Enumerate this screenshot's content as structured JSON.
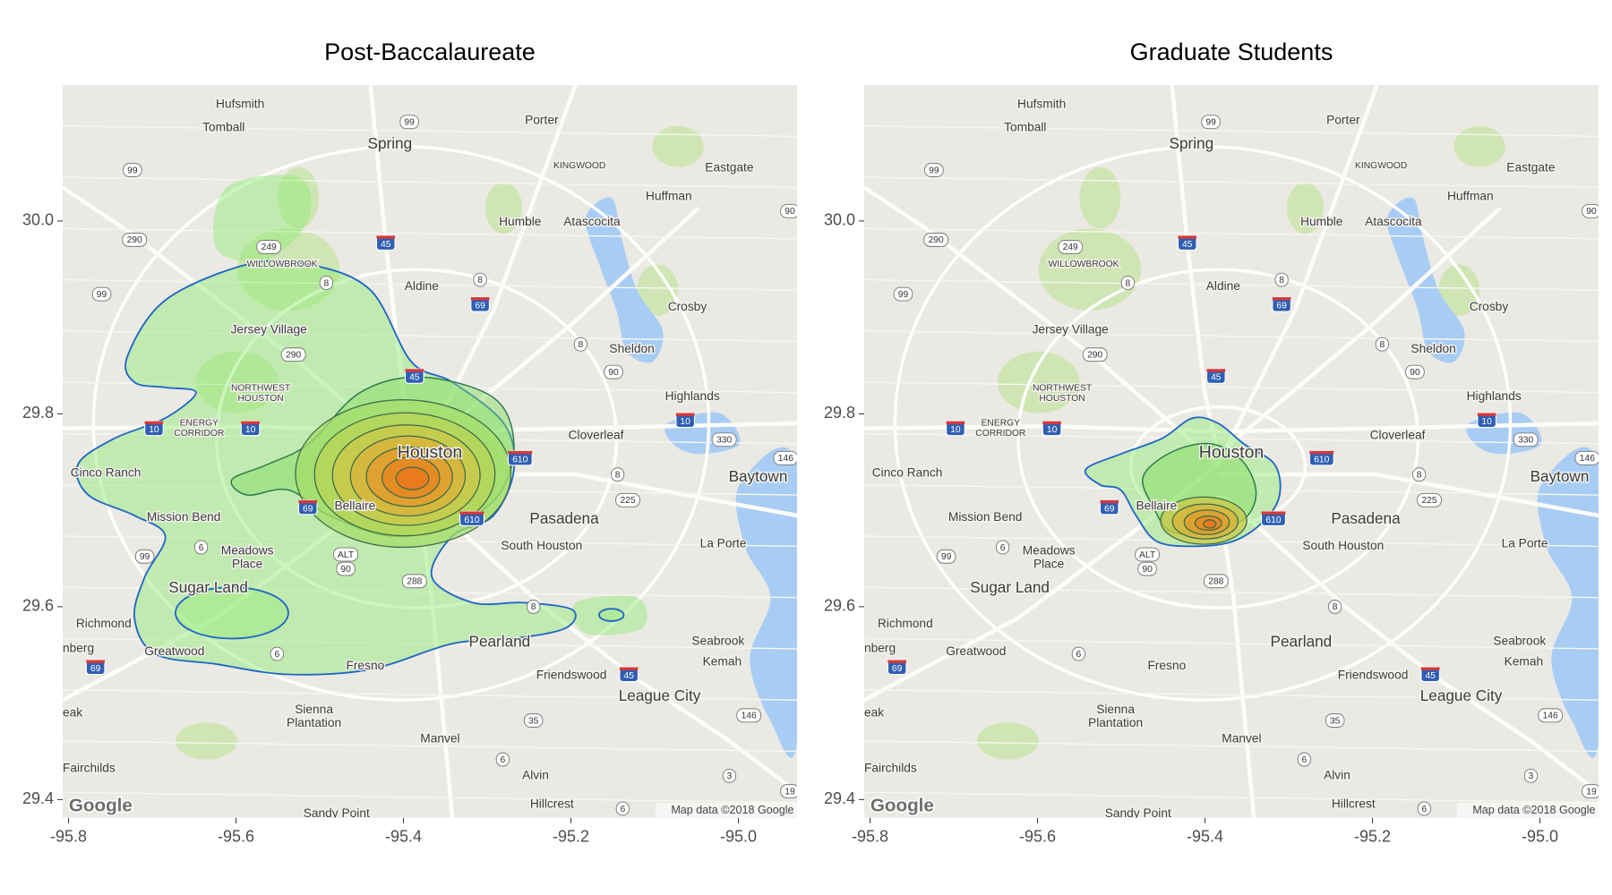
{
  "map": {
    "panels": [
      {
        "title": "Post-Baccalaureate"
      },
      {
        "title": "Graduate Students"
      }
    ],
    "xlim": [
      -95.807,
      -94.93
    ],
    "ylim": [
      29.381,
      30.141
    ],
    "xticks": [
      -95.8,
      -95.6,
      -95.4,
      -95.2,
      {
        "value": -95.0,
        "label": "-95.0"
      }
    ],
    "yticks": [
      29.4,
      29.6,
      29.8,
      {
        "value": 30.0,
        "label": "30.0"
      }
    ],
    "places": [
      "Hufsmith",
      "Tomball",
      "Spring",
      "Porter",
      "KINGWOOD",
      "Eastgate",
      "Huffman",
      "Humble",
      "Atascocita",
      "WILLOWBROOK",
      "Aldine",
      "Crosby",
      "Jersey Village",
      "Sheldon",
      "NORTHWEST",
      "HOUSTON",
      "Highlands",
      "ENERGY",
      "CORRIDOR",
      "Cloverleaf",
      "Houston",
      "Cinco Ranch",
      "Baytown",
      "Bellaire",
      "Mission Bend",
      "Pasadena",
      "La Porte",
      "South Houston",
      "Meadows",
      "Place",
      "Sugar Land",
      "Richmond",
      "Pearland",
      "Seabrook",
      "nberg",
      "Greatwood",
      "Kemah",
      "Fresno",
      "Friendswood",
      "League City",
      "eak",
      "Sienna",
      "Plantation",
      "Manvel",
      "Fairchilds",
      "Alvin",
      "Hillcrest",
      "Sandy Point"
    ],
    "shields": [
      "99",
      "99",
      "290",
      "249",
      "45",
      "8",
      "8",
      "69",
      "99",
      "290",
      "8",
      "90",
      "45",
      "10",
      "10",
      "10",
      "330",
      "146",
      "610",
      "8",
      "225",
      "69",
      "610",
      "6",
      "99",
      "ALT",
      "90",
      "288",
      "8",
      "6",
      "69",
      "45",
      "146",
      "35",
      "6",
      "3",
      "6",
      "90",
      "19"
    ],
    "logo": "Google",
    "attribution": "Map data ©2018 Google"
  }
}
